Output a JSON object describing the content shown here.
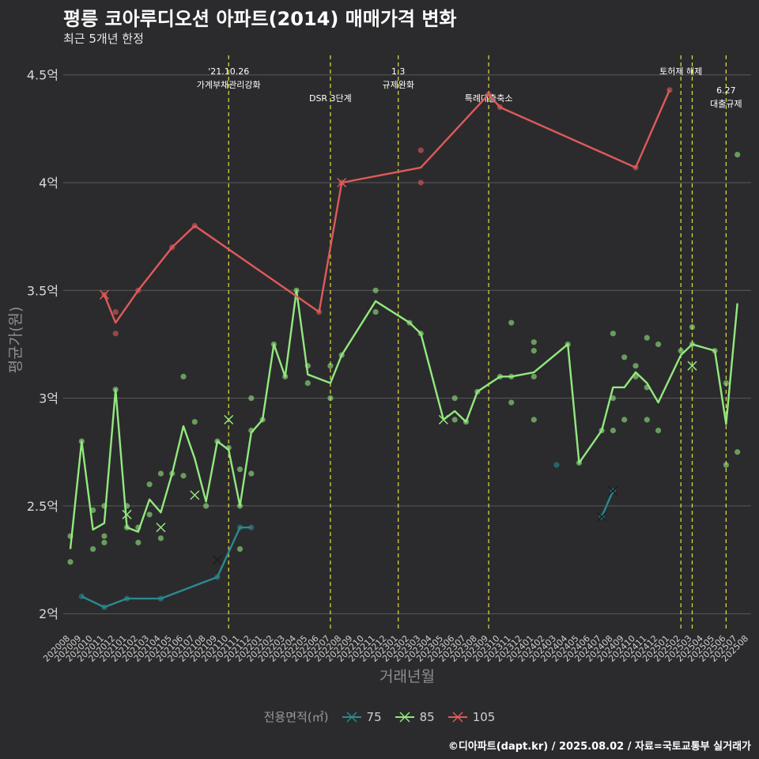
{
  "title": "평릉 코아루디오션 아파트(2014) 매매가격 변화",
  "subtitle": "최근 5개년 한정",
  "caption": "©디아파트(dapt.kr) / 2025.08.02 / 자료=국토교통부 실거래가",
  "legend": {
    "title": "전용면적(㎡)",
    "items": [
      {
        "label": "75",
        "color": "#2a8a8f"
      },
      {
        "label": "85",
        "color": "#93e87f"
      },
      {
        "label": "105",
        "color": "#e05a5a"
      }
    ]
  },
  "chart_data": {
    "type": "line",
    "xlabel": "거래년월",
    "ylabel": "평균가(원)",
    "ylim": [
      1.92,
      4.62
    ],
    "yticks": [
      2,
      2.5,
      3,
      3.5,
      4,
      4.5
    ],
    "ytick_labels": [
      "2억",
      "2.5억",
      "3억",
      "3.5억",
      "4억",
      "4.5억"
    ],
    "x": [
      "202008",
      "202009",
      "202010",
      "202011",
      "202012",
      "202101",
      "202102",
      "202103",
      "202104",
      "202105",
      "202106",
      "202107",
      "202108",
      "202109",
      "202110",
      "202111",
      "202112",
      "202201",
      "202202",
      "202203",
      "202204",
      "202205",
      "202206",
      "202207",
      "202208",
      "202209",
      "202210",
      "202211",
      "202212",
      "202301",
      "202302",
      "202303",
      "202304",
      "202305",
      "202306",
      "202307",
      "202308",
      "202309",
      "202310",
      "202311",
      "202312",
      "202401",
      "202402",
      "202403",
      "202404",
      "202405",
      "202406",
      "202407",
      "202408",
      "202409",
      "202410",
      "202411",
      "202412",
      "202501",
      "202502",
      "202503",
      "202504",
      "202505",
      "202506",
      "202507",
      "202508"
    ],
    "vlines": [
      {
        "x": "202110",
        "label": [
          "'21.10.26",
          "가계부채관리강화"
        ],
        "level": "high"
      },
      {
        "x": "202207",
        "label": [
          "DSR 3단계"
        ],
        "level": "low"
      },
      {
        "x": "202301",
        "label": [
          "1.3",
          "규제완화"
        ],
        "level": "high"
      },
      {
        "x": "202309",
        "label": [
          "특례대출축소"
        ],
        "level": "low"
      },
      {
        "x": "202502",
        "label": [
          "토허제 해제"
        ],
        "level": "high"
      },
      {
        "x": "202503",
        "label": [],
        "level": "high"
      },
      {
        "x": "202506",
        "label": [
          "6.27",
          "대출규제"
        ],
        "level": "mid"
      }
    ],
    "series": [
      {
        "name": "75",
        "color": "#2a8a8f",
        "line": [
          [
            "202009",
            2.08
          ],
          [
            "202011",
            2.03
          ],
          [
            "202101",
            2.07
          ],
          [
            "202104",
            2.07
          ],
          [
            "202109",
            2.17
          ],
          [
            "202111",
            2.4
          ],
          [
            "202112",
            2.4
          ]
        ],
        "points": [
          [
            "202009",
            2.08
          ],
          [
            "202011",
            2.03
          ],
          [
            "202101",
            2.07
          ],
          [
            "202104",
            2.07
          ],
          [
            "202109",
            2.17
          ],
          [
            "202111",
            2.4
          ],
          [
            "202112",
            2.4
          ],
          [
            "202403",
            2.69
          ],
          [
            "202407",
            2.45
          ],
          [
            "202408",
            2.57
          ]
        ],
        "crosses": [
          [
            "202109",
            2.25
          ],
          [
            "202407",
            2.45
          ],
          [
            "202408",
            2.57
          ]
        ],
        "line2": [
          [
            "202407",
            2.45
          ],
          [
            "202408",
            2.57
          ]
        ]
      },
      {
        "name": "85",
        "color": "#93e87f",
        "line": [
          [
            "202008",
            2.3
          ],
          [
            "202009",
            2.8
          ],
          [
            "202010",
            2.39
          ],
          [
            "202011",
            2.42
          ],
          [
            "202012",
            3.04
          ],
          [
            "202101",
            2.4
          ],
          [
            "202102",
            2.38
          ],
          [
            "202103",
            2.53
          ],
          [
            "202104",
            2.47
          ],
          [
            "202105",
            2.65
          ],
          [
            "202106",
            2.87
          ],
          [
            "202107",
            2.72
          ],
          [
            "202108",
            2.52
          ],
          [
            "202109",
            2.8
          ],
          [
            "202110",
            2.76
          ],
          [
            "202111",
            2.5
          ],
          [
            "202112",
            2.84
          ],
          [
            "202201",
            2.9
          ],
          [
            "202202",
            3.25
          ],
          [
            "202203",
            3.1
          ],
          [
            "202204",
            3.5
          ],
          [
            "202205",
            3.11
          ],
          [
            "202207",
            3.07
          ],
          [
            "202208",
            3.2
          ],
          [
            "202211",
            3.45
          ],
          [
            "202302",
            3.35
          ],
          [
            "202303",
            3.3
          ],
          [
            "202305",
            2.9
          ],
          [
            "202306",
            2.94
          ],
          [
            "202307",
            2.89
          ],
          [
            "202308",
            3.03
          ],
          [
            "202310",
            3.1
          ],
          [
            "202311",
            3.1
          ],
          [
            "202401",
            3.12
          ],
          [
            "202404",
            3.25
          ],
          [
            "202405",
            2.7
          ],
          [
            "202407",
            2.85
          ],
          [
            "202408",
            3.05
          ],
          [
            "202409",
            3.05
          ],
          [
            "202410",
            3.12
          ],
          [
            "202411",
            3.07
          ],
          [
            "202412",
            2.98
          ],
          [
            "202502",
            3.2
          ],
          [
            "202503",
            3.25
          ],
          [
            "202505",
            3.22
          ],
          [
            "202506",
            2.88
          ],
          [
            "202507",
            3.44
          ]
        ],
        "points": [
          [
            "202008",
            2.24
          ],
          [
            "202008",
            2.36
          ],
          [
            "202009",
            2.8
          ],
          [
            "202010",
            2.3
          ],
          [
            "202010",
            2.48
          ],
          [
            "202011",
            2.5
          ],
          [
            "202011",
            2.36
          ],
          [
            "202011",
            2.33
          ],
          [
            "202012",
            3.04
          ],
          [
            "202101",
            2.5
          ],
          [
            "202101",
            2.4
          ],
          [
            "202102",
            2.33
          ],
          [
            "202102",
            2.4
          ],
          [
            "202103",
            2.6
          ],
          [
            "202103",
            2.46
          ],
          [
            "202104",
            2.35
          ],
          [
            "202104",
            2.65
          ],
          [
            "202105",
            2.65
          ],
          [
            "202106",
            3.1
          ],
          [
            "202106",
            2.64
          ],
          [
            "202107",
            2.89
          ],
          [
            "202108",
            2.5
          ],
          [
            "202109",
            2.8
          ],
          [
            "202110",
            2.77
          ],
          [
            "202111",
            2.67
          ],
          [
            "202111",
            2.5
          ],
          [
            "202111",
            2.3
          ],
          [
            "202112",
            3.0
          ],
          [
            "202112",
            2.85
          ],
          [
            "202112",
            2.65
          ],
          [
            "202201",
            2.9
          ],
          [
            "202202",
            3.25
          ],
          [
            "202203",
            3.1
          ],
          [
            "202204",
            3.5
          ],
          [
            "202205",
            3.15
          ],
          [
            "202205",
            3.07
          ],
          [
            "202207",
            3.15
          ],
          [
            "202207",
            3.0
          ],
          [
            "202208",
            3.2
          ],
          [
            "202211",
            3.5
          ],
          [
            "202211",
            3.4
          ],
          [
            "202302",
            3.35
          ],
          [
            "202303",
            3.3
          ],
          [
            "202306",
            2.9
          ],
          [
            "202306",
            3.0
          ],
          [
            "202307",
            2.89
          ],
          [
            "202308",
            3.03
          ],
          [
            "202310",
            3.1
          ],
          [
            "202311",
            3.35
          ],
          [
            "202311",
            2.98
          ],
          [
            "202311",
            3.1
          ],
          [
            "202401",
            3.26
          ],
          [
            "202401",
            3.22
          ],
          [
            "202401",
            3.1
          ],
          [
            "202401",
            2.9
          ],
          [
            "202404",
            3.25
          ],
          [
            "202405",
            2.7
          ],
          [
            "202407",
            2.85
          ],
          [
            "202408",
            3.3
          ],
          [
            "202408",
            3.0
          ],
          [
            "202408",
            2.85
          ],
          [
            "202409",
            3.19
          ],
          [
            "202409",
            2.9
          ],
          [
            "202410",
            3.15
          ],
          [
            "202410",
            3.1
          ],
          [
            "202411",
            3.28
          ],
          [
            "202411",
            3.05
          ],
          [
            "202411",
            2.9
          ],
          [
            "202412",
            3.25
          ],
          [
            "202412",
            2.85
          ],
          [
            "202502",
            3.22
          ],
          [
            "202503",
            3.33
          ],
          [
            "202503",
            3.25
          ],
          [
            "202505",
            3.22
          ],
          [
            "202506",
            3.07
          ],
          [
            "202506",
            2.69
          ],
          [
            "202507",
            4.13
          ],
          [
            "202507",
            2.75
          ]
        ],
        "crosses": [
          [
            "202101",
            2.46
          ],
          [
            "202104",
            2.4
          ],
          [
            "202107",
            2.55
          ],
          [
            "202110",
            2.9
          ],
          [
            "202305",
            2.9
          ],
          [
            "202503",
            3.15
          ]
        ]
      },
      {
        "name": "105",
        "color": "#e05a5a",
        "line": [
          [
            "202011",
            3.48
          ],
          [
            "202012",
            3.35
          ],
          [
            "202102",
            3.5
          ],
          [
            "202105",
            3.7
          ],
          [
            "202107",
            3.8
          ],
          [
            "202206",
            3.4
          ],
          [
            "202208",
            4.0
          ],
          [
            "202303",
            4.07
          ],
          [
            "202309",
            4.41
          ],
          [
            "202310",
            4.35
          ],
          [
            "202410",
            4.07
          ],
          [
            "202501",
            4.43
          ]
        ],
        "points": [
          [
            "202011",
            3.48
          ],
          [
            "202012",
            3.4
          ],
          [
            "202012",
            3.3
          ],
          [
            "202102",
            3.5
          ],
          [
            "202105",
            3.7
          ],
          [
            "202107",
            3.8
          ],
          [
            "202206",
            3.4
          ],
          [
            "202208",
            4.0
          ],
          [
            "202303",
            4.15
          ],
          [
            "202303",
            4.0
          ],
          [
            "202309",
            4.41
          ],
          [
            "202310",
            4.35
          ],
          [
            "202410",
            4.07
          ],
          [
            "202501",
            4.43
          ]
        ],
        "crosses": [
          [
            "202011",
            3.48
          ],
          [
            "202208",
            4.0
          ]
        ]
      }
    ]
  }
}
